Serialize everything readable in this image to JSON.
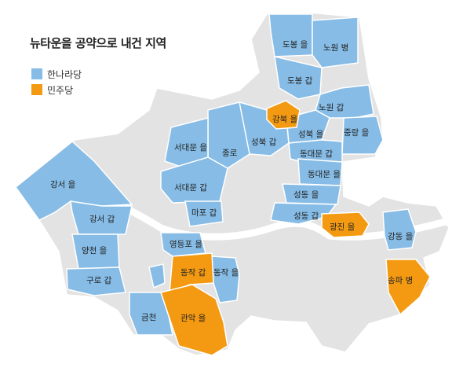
{
  "title": "뉴타운을 공약으로 내건 지역",
  "colors": {
    "hannara": "#86bce6",
    "minju": "#f39a12",
    "other": "#e3e3e3",
    "river": "#ffffff",
    "border": "#ffffff"
  },
  "legend": [
    {
      "label": "한나라당",
      "color": "#86bce6"
    },
    {
      "label": "민주당",
      "color": "#f39a12"
    }
  ],
  "regions": [
    {
      "name": "도봉 을",
      "party": "hannara"
    },
    {
      "name": "노원 병",
      "party": "hannara"
    },
    {
      "name": "도봉 갑",
      "party": "hannara"
    },
    {
      "name": "강북 을",
      "party": "minju"
    },
    {
      "name": "노원 갑",
      "party": "hannara"
    },
    {
      "name": "성북 갑",
      "party": "hannara"
    },
    {
      "name": "성북 을",
      "party": "hannara"
    },
    {
      "name": "중랑 을",
      "party": "hannara"
    },
    {
      "name": "동대문 갑",
      "party": "hannara"
    },
    {
      "name": "동대문 을",
      "party": "hannara"
    },
    {
      "name": "성동 을",
      "party": "hannara"
    },
    {
      "name": "성동 갑",
      "party": "hannara"
    },
    {
      "name": "광진 을",
      "party": "minju"
    },
    {
      "name": "서대문 을",
      "party": "hannara"
    },
    {
      "name": "종로",
      "party": "hannara"
    },
    {
      "name": "서대문 갑",
      "party": "hannara"
    },
    {
      "name": "마포 갑",
      "party": "hannara"
    },
    {
      "name": "강서 을",
      "party": "hannara"
    },
    {
      "name": "강서 갑",
      "party": "hannara"
    },
    {
      "name": "양천 을",
      "party": "hannara"
    },
    {
      "name": "구로 갑",
      "party": "hannara"
    },
    {
      "name": "영등포 을",
      "party": "hannara"
    },
    {
      "name": "동작 갑",
      "party": "minju"
    },
    {
      "name": "동작 을",
      "party": "hannara"
    },
    {
      "name": "금천",
      "party": "hannara"
    },
    {
      "name": "관악 을",
      "party": "minju"
    },
    {
      "name": "강동 을",
      "party": "hannara"
    },
    {
      "name": "송파 병",
      "party": "minju"
    }
  ]
}
